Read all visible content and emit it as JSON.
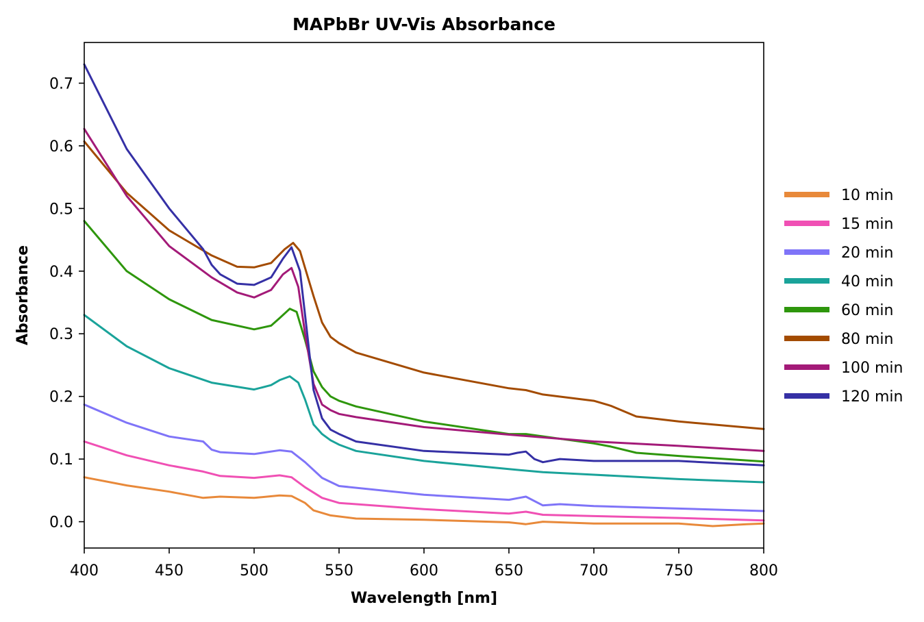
{
  "chart_data": {
    "type": "line",
    "title": "MAPbBr UV-Vis Absorbance",
    "xlabel": "Wavelength [nm]",
    "ylabel": "Absorbance",
    "xlim": [
      400,
      800
    ],
    "ylim": [
      -0.042,
      0.765
    ],
    "x_ticks": [
      400,
      450,
      500,
      550,
      600,
      650,
      700,
      750,
      800
    ],
    "y_ticks": [
      0.0,
      0.1,
      0.2,
      0.3,
      0.4,
      0.5,
      0.6,
      0.7
    ],
    "x_tick_labels": [
      "400",
      "450",
      "500",
      "550",
      "600",
      "650",
      "700",
      "750",
      "800"
    ],
    "y_tick_labels": [
      "0.0",
      "0.1",
      "0.2",
      "0.3",
      "0.4",
      "0.5",
      "0.6",
      "0.7"
    ],
    "grid": false,
    "legend_position": "right, outside plot",
    "series": [
      {
        "name": "10 min",
        "color": "#E8893A",
        "x": [
          400,
          425,
          450,
          470,
          480,
          500,
          515,
          522,
          530,
          535,
          545,
          560,
          600,
          650,
          660,
          670,
          700,
          750,
          770,
          790,
          800
        ],
        "y": [
          0.071,
          0.058,
          0.048,
          0.038,
          0.04,
          0.038,
          0.042,
          0.041,
          0.03,
          0.018,
          0.01,
          0.005,
          0.003,
          -0.001,
          -0.004,
          0.0,
          -0.003,
          -0.003,
          -0.007,
          -0.004,
          -0.003
        ]
      },
      {
        "name": "15 min",
        "color": "#F050B4",
        "x": [
          400,
          425,
          450,
          470,
          480,
          500,
          515,
          522,
          530,
          540,
          550,
          600,
          650,
          660,
          670,
          700,
          750,
          800
        ],
        "y": [
          0.128,
          0.106,
          0.09,
          0.08,
          0.073,
          0.07,
          0.074,
          0.071,
          0.055,
          0.038,
          0.03,
          0.02,
          0.013,
          0.016,
          0.011,
          0.009,
          0.006,
          0.002
        ]
      },
      {
        "name": "20 min",
        "color": "#7F74F8",
        "x": [
          400,
          425,
          450,
          470,
          475,
          480,
          500,
          515,
          522,
          530,
          540,
          550,
          600,
          650,
          660,
          670,
          680,
          700,
          750,
          800
        ],
        "y": [
          0.187,
          0.158,
          0.136,
          0.128,
          0.115,
          0.111,
          0.108,
          0.114,
          0.112,
          0.095,
          0.07,
          0.057,
          0.043,
          0.035,
          0.04,
          0.026,
          0.028,
          0.025,
          0.021,
          0.017
        ]
      },
      {
        "name": "40 min",
        "color": "#1AA39A",
        "x": [
          400,
          425,
          450,
          475,
          500,
          510,
          515,
          521,
          526,
          530,
          535,
          540,
          545,
          550,
          560,
          600,
          650,
          670,
          700,
          750,
          800
        ],
        "y": [
          0.33,
          0.28,
          0.245,
          0.222,
          0.211,
          0.218,
          0.226,
          0.232,
          0.222,
          0.195,
          0.155,
          0.14,
          0.13,
          0.123,
          0.113,
          0.097,
          0.084,
          0.079,
          0.075,
          0.068,
          0.063
        ]
      },
      {
        "name": "60 min",
        "color": "#2E960C",
        "x": [
          400,
          425,
          450,
          475,
          500,
          510,
          515,
          521,
          525,
          530,
          535,
          540,
          545,
          550,
          560,
          600,
          650,
          660,
          700,
          710,
          725,
          750,
          800
        ],
        "y": [
          0.48,
          0.4,
          0.355,
          0.322,
          0.307,
          0.313,
          0.325,
          0.34,
          0.335,
          0.29,
          0.24,
          0.215,
          0.2,
          0.193,
          0.184,
          0.16,
          0.14,
          0.14,
          0.125,
          0.12,
          0.11,
          0.105,
          0.096
        ]
      },
      {
        "name": "80 min",
        "color": "#A34B00",
        "x": [
          400,
          425,
          450,
          475,
          490,
          500,
          510,
          518,
          523,
          527,
          530,
          535,
          540,
          545,
          550,
          560,
          600,
          650,
          660,
          670,
          700,
          710,
          725,
          750,
          800
        ],
        "y": [
          0.607,
          0.525,
          0.465,
          0.425,
          0.407,
          0.406,
          0.413,
          0.435,
          0.445,
          0.432,
          0.405,
          0.36,
          0.318,
          0.295,
          0.285,
          0.27,
          0.238,
          0.213,
          0.21,
          0.203,
          0.193,
          0.185,
          0.168,
          0.16,
          0.148
        ]
      },
      {
        "name": "100 min",
        "color": "#A31A78",
        "x": [
          400,
          425,
          450,
          475,
          490,
          500,
          510,
          517,
          522,
          526,
          530,
          535,
          540,
          545,
          550,
          560,
          600,
          650,
          700,
          750,
          800
        ],
        "y": [
          0.627,
          0.52,
          0.44,
          0.39,
          0.366,
          0.358,
          0.37,
          0.395,
          0.405,
          0.375,
          0.3,
          0.22,
          0.187,
          0.178,
          0.172,
          0.167,
          0.151,
          0.139,
          0.128,
          0.121,
          0.113
        ]
      },
      {
        "name": "120 min",
        "color": "#3530A5",
        "x": [
          400,
          425,
          450,
          470,
          475,
          480,
          490,
          500,
          510,
          517,
          522,
          527,
          530,
          535,
          540,
          545,
          550,
          560,
          600,
          650,
          655,
          660,
          665,
          670,
          680,
          700,
          750,
          800
        ],
        "y": [
          0.73,
          0.595,
          0.5,
          0.435,
          0.41,
          0.395,
          0.38,
          0.378,
          0.39,
          0.42,
          0.438,
          0.4,
          0.33,
          0.21,
          0.165,
          0.147,
          0.14,
          0.128,
          0.113,
          0.107,
          0.11,
          0.112,
          0.1,
          0.095,
          0.1,
          0.097,
          0.097,
          0.09
        ]
      }
    ]
  }
}
